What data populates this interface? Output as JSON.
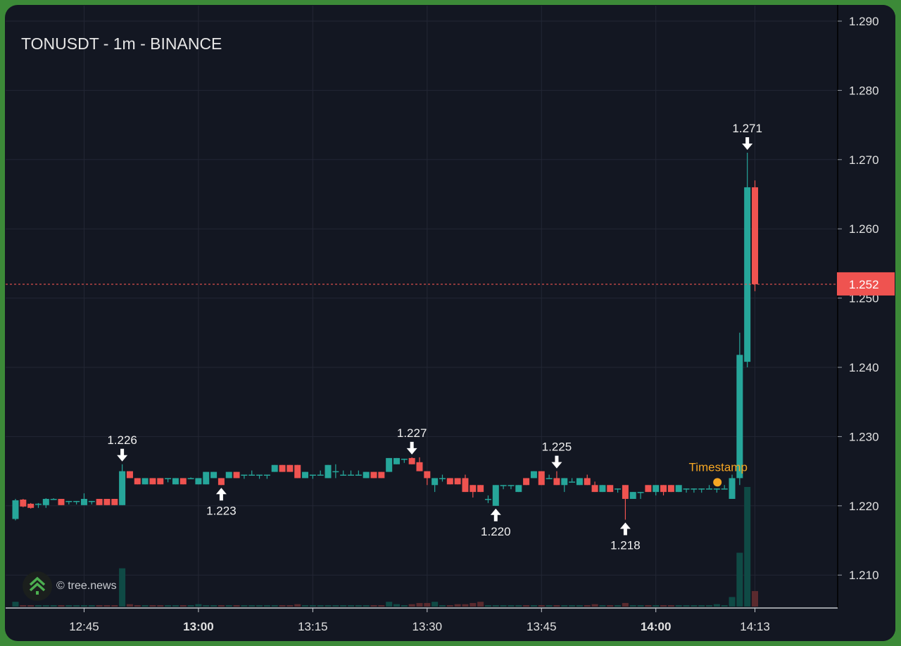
{
  "header": {
    "title": "TONUSDT - 1m - BINANCE"
  },
  "watermark": {
    "text": "© tree.news"
  },
  "colors": {
    "up": "#26a69a",
    "down": "#ef5350",
    "up_volume": "#0f4a45",
    "down_volume": "#5a2a2e",
    "background": "#131722",
    "grid": "#232734",
    "frame": "#3c8a38",
    "marker": "#f5a623"
  },
  "chart_data": {
    "type": "candlestick",
    "symbol": "TONUSDT",
    "interval": "1m",
    "exchange": "BINANCE",
    "ylim": [
      1.2055,
      1.2925
    ],
    "y_ticks": [
      "1.290",
      "1.280",
      "1.270",
      "1.260",
      "1.250",
      "1.240",
      "1.230",
      "1.220",
      "1.210"
    ],
    "x_ticks": [
      {
        "index": 9,
        "label": "12:45",
        "bold": false
      },
      {
        "index": 24,
        "label": "13:00",
        "bold": true
      },
      {
        "index": 39,
        "label": "13:15",
        "bold": false
      },
      {
        "index": 54,
        "label": "13:30",
        "bold": false
      },
      {
        "index": 69,
        "label": "13:45",
        "bold": false
      },
      {
        "index": 84,
        "label": "14:00",
        "bold": true
      },
      {
        "index": 97,
        "label": "14:13",
        "bold": false
      }
    ],
    "last_price": {
      "value": 1.252,
      "label": "1.252"
    },
    "candles_ohlc": [
      [
        1.2181,
        1.221,
        1.2179,
        1.2208
      ],
      [
        1.2209,
        1.221,
        1.2198,
        1.2199
      ],
      [
        1.2203,
        1.2204,
        1.2196,
        1.2197
      ],
      [
        1.2203,
        1.2204,
        1.2197,
        1.2203
      ],
      [
        1.2201,
        1.2211,
        1.2197,
        1.221
      ],
      [
        1.221,
        1.2211,
        1.221,
        1.221
      ],
      [
        1.221,
        1.221,
        1.2201,
        1.2201
      ],
      [
        1.2207,
        1.2207,
        1.2202,
        1.2207
      ],
      [
        1.2207,
        1.2207,
        1.2202,
        1.2207
      ],
      [
        1.2201,
        1.2218,
        1.2201,
        1.221
      ],
      [
        1.2207,
        1.2207,
        1.2202,
        1.2207
      ],
      [
        1.221,
        1.221,
        1.2201,
        1.2201
      ],
      [
        1.221,
        1.221,
        1.2201,
        1.2201
      ],
      [
        1.221,
        1.221,
        1.2201,
        1.2201
      ],
      [
        1.2201,
        1.226,
        1.2201,
        1.225
      ],
      [
        1.225,
        1.225,
        1.224,
        1.224
      ],
      [
        1.224,
        1.224,
        1.2231,
        1.2231
      ],
      [
        1.2231,
        1.224,
        1.2231,
        1.224
      ],
      [
        1.224,
        1.224,
        1.2231,
        1.2231
      ],
      [
        1.224,
        1.224,
        1.2231,
        1.2231
      ],
      [
        1.224,
        1.224,
        1.2234,
        1.224
      ],
      [
        1.2231,
        1.224,
        1.2231,
        1.224
      ],
      [
        1.224,
        1.224,
        1.2231,
        1.2231
      ],
      [
        1.224,
        1.2241,
        1.224,
        1.224
      ],
      [
        1.2231,
        1.224,
        1.2231,
        1.224
      ],
      [
        1.2231,
        1.2249,
        1.2231,
        1.2249
      ],
      [
        1.224,
        1.2249,
        1.224,
        1.2249
      ],
      [
        1.224,
        1.224,
        1.223,
        1.223
      ],
      [
        1.224,
        1.2249,
        1.224,
        1.2249
      ],
      [
        1.2249,
        1.2249,
        1.224,
        1.224
      ],
      [
        1.2245,
        1.2245,
        1.2239,
        1.2245
      ],
      [
        1.2245,
        1.2251,
        1.2245,
        1.2245
      ],
      [
        1.2245,
        1.2245,
        1.2239,
        1.2245
      ],
      [
        1.2245,
        1.2245,
        1.2239,
        1.2245
      ],
      [
        1.2249,
        1.2259,
        1.2249,
        1.2259
      ],
      [
        1.2259,
        1.2259,
        1.2249,
        1.2249
      ],
      [
        1.2259,
        1.2259,
        1.2249,
        1.2249
      ],
      [
        1.2259,
        1.2259,
        1.224,
        1.224
      ],
      [
        1.224,
        1.2249,
        1.224,
        1.2249
      ],
      [
        1.2245,
        1.2245,
        1.2239,
        1.2245
      ],
      [
        1.2245,
        1.2251,
        1.2245,
        1.2245
      ],
      [
        1.224,
        1.2259,
        1.224,
        1.2259
      ],
      [
        1.225,
        1.226,
        1.224,
        1.225
      ],
      [
        1.2245,
        1.2251,
        1.2245,
        1.2245
      ],
      [
        1.2245,
        1.2251,
        1.2245,
        1.2245
      ],
      [
        1.2245,
        1.2251,
        1.2245,
        1.2245
      ],
      [
        1.224,
        1.2249,
        1.224,
        1.2249
      ],
      [
        1.2249,
        1.2249,
        1.224,
        1.224
      ],
      [
        1.2249,
        1.2249,
        1.224,
        1.224
      ],
      [
        1.2249,
        1.2269,
        1.2249,
        1.2269
      ],
      [
        1.226,
        1.2269,
        1.226,
        1.2269
      ],
      [
        1.2268,
        1.2268,
        1.2262,
        1.2268
      ],
      [
        1.2269,
        1.227,
        1.226,
        1.226
      ],
      [
        1.2263,
        1.227,
        1.225,
        1.225
      ],
      [
        1.225,
        1.225,
        1.223,
        1.224
      ],
      [
        1.223,
        1.224,
        1.222,
        1.224
      ],
      [
        1.224,
        1.2245,
        1.2235,
        1.224
      ],
      [
        1.224,
        1.224,
        1.2231,
        1.2231
      ],
      [
        1.224,
        1.224,
        1.2231,
        1.2231
      ],
      [
        1.224,
        1.2245,
        1.222,
        1.222
      ],
      [
        1.223,
        1.223,
        1.2212,
        1.222
      ],
      [
        1.223,
        1.223,
        1.222,
        1.222
      ],
      [
        1.221,
        1.2215,
        1.2204,
        1.221
      ],
      [
        1.22,
        1.223,
        1.22,
        1.223
      ],
      [
        1.223,
        1.223,
        1.2224,
        1.223
      ],
      [
        1.223,
        1.223,
        1.2224,
        1.223
      ],
      [
        1.222,
        1.223,
        1.222,
        1.223
      ],
      [
        1.224,
        1.224,
        1.223,
        1.223
      ],
      [
        1.224,
        1.225,
        1.224,
        1.225
      ],
      [
        1.225,
        1.225,
        1.223,
        1.223
      ],
      [
        1.224,
        1.2245,
        1.224,
        1.224
      ],
      [
        1.224,
        1.225,
        1.223,
        1.223
      ],
      [
        1.223,
        1.224,
        1.222,
        1.224
      ],
      [
        1.2235,
        1.224,
        1.2235,
        1.2235
      ],
      [
        1.223,
        1.224,
        1.223,
        1.224
      ],
      [
        1.224,
        1.2245,
        1.223,
        1.223
      ],
      [
        1.223,
        1.2235,
        1.222,
        1.222
      ],
      [
        1.222,
        1.223,
        1.222,
        1.223
      ],
      [
        1.223,
        1.223,
        1.222,
        1.222
      ],
      [
        1.2225,
        1.2225,
        1.2219,
        1.2225
      ],
      [
        1.223,
        1.223,
        1.218,
        1.221
      ],
      [
        1.221,
        1.222,
        1.221,
        1.222
      ],
      [
        1.222,
        1.222,
        1.221,
        1.222
      ],
      [
        1.223,
        1.223,
        1.222,
        1.222
      ],
      [
        1.222,
        1.223,
        1.2215,
        1.223
      ],
      [
        1.223,
        1.223,
        1.2215,
        1.222
      ],
      [
        1.223,
        1.223,
        1.222,
        1.222
      ],
      [
        1.222,
        1.223,
        1.222,
        1.223
      ],
      [
        1.2225,
        1.2225,
        1.2219,
        1.2225
      ],
      [
        1.2225,
        1.2225,
        1.2219,
        1.2225
      ],
      [
        1.2225,
        1.2225,
        1.2219,
        1.2225
      ],
      [
        1.2225,
        1.223,
        1.2225,
        1.2225
      ],
      [
        1.2225,
        1.2225,
        1.2219,
        1.2225
      ],
      [
        1.2225,
        1.223,
        1.2225,
        1.2225
      ],
      [
        1.221,
        1.2245,
        1.221,
        1.224
      ],
      [
        1.224,
        1.245,
        1.223,
        1.2418
      ],
      [
        1.2408,
        1.271,
        1.24,
        1.266
      ],
      [
        1.266,
        1.267,
        1.251,
        1.252
      ]
    ],
    "volumes": [
      4,
      1,
      1,
      1,
      1,
      1,
      1,
      1,
      1,
      1,
      1,
      1,
      1,
      1,
      32,
      2,
      1,
      1,
      1,
      1,
      1,
      1,
      1,
      1,
      2,
      1,
      1,
      1,
      1,
      1,
      1,
      1,
      1,
      1,
      1,
      1,
      1,
      2,
      1,
      1,
      1,
      1,
      1,
      1,
      1,
      1,
      1,
      1,
      1,
      4,
      2,
      1,
      2,
      3,
      3,
      4,
      1,
      1,
      2,
      2,
      3,
      4,
      1,
      1,
      1,
      1,
      1,
      1,
      1,
      1,
      1,
      1,
      1,
      1,
      1,
      1,
      2,
      1,
      1,
      1,
      3,
      1,
      1,
      1,
      1,
      1,
      1,
      1,
      1,
      1,
      1,
      1,
      2,
      1,
      8,
      45,
      100,
      13
    ],
    "annotations": [
      {
        "index": 14,
        "label": "1.226",
        "direction": "down",
        "price": 1.226
      },
      {
        "index": 27,
        "label": "1.223",
        "direction": "up",
        "price": 1.223
      },
      {
        "index": 52,
        "label": "1.227",
        "direction": "down",
        "price": 1.227
      },
      {
        "index": 63,
        "label": "1.220",
        "direction": "up",
        "price": 1.22
      },
      {
        "index": 71,
        "label": "1.225",
        "direction": "down",
        "price": 1.225
      },
      {
        "index": 80,
        "label": "1.218",
        "direction": "up",
        "price": 1.218
      },
      {
        "index": 96,
        "label": "1.271",
        "direction": "down",
        "price": 1.271
      }
    ],
    "event_marker": {
      "index": 93,
      "price": 1.2234,
      "label": "Timestamp"
    }
  }
}
